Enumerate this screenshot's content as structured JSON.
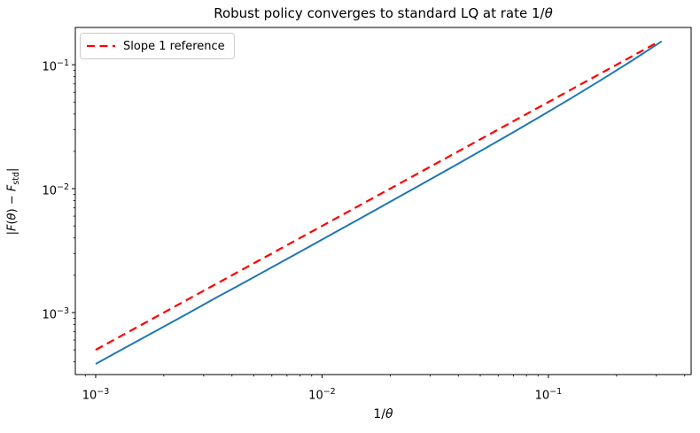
{
  "labels": {
    "title_prefix": "Robust policy converges to standard LQ at rate 1/",
    "title_theta": "θ",
    "xlabel_prefix": "1/",
    "xlabel_theta": "θ",
    "ylabel_bar_open": "|",
    "ylabel_F1": "F",
    "ylabel_paren_open": "(",
    "ylabel_theta": "θ",
    "ylabel_paren_close": ")",
    "ylabel_minus": " − ",
    "ylabel_F2": "F",
    "ylabel_sub": "std",
    "ylabel_bar_close": "|",
    "legend_label": "Slope 1 reference"
  },
  "chart_data": {
    "type": "line",
    "title": "Robust policy converges to standard LQ at rate 1/θ",
    "xlabel": "1/θ",
    "ylabel": "|F(θ) − F_std|",
    "xscale": "log",
    "yscale": "log",
    "grid": false,
    "legend_position": "upper left",
    "xlim": [
      0.000813,
      0.427
    ],
    "ylim": [
      0.000316,
      0.2
    ],
    "x_major_ticks": [
      0.001,
      0.01,
      0.1
    ],
    "x_tick_labels": [
      {
        "base": "10",
        "exp": "−3"
      },
      {
        "base": "10",
        "exp": "−2"
      },
      {
        "base": "10",
        "exp": "−1"
      }
    ],
    "y_major_ticks": [
      0.1,
      0.01,
      0.001
    ],
    "y_tick_labels": [
      {
        "base": "10",
        "exp": "−1"
      },
      {
        "base": "10",
        "exp": "−2"
      },
      {
        "base": "10",
        "exp": "−3"
      }
    ],
    "minor_tick_multipliers": [
      2,
      3,
      4,
      5,
      6,
      7,
      8,
      9
    ],
    "axis_color": "#000000",
    "series": [
      {
        "name": "robust-error-curve",
        "label": null,
        "color": "#1f77b4",
        "line_style": "solid",
        "line_width": 2,
        "x": [
          0.001,
          0.001354,
          0.001833,
          0.002482,
          0.00336,
          0.004549,
          0.006158,
          0.008338,
          0.011288,
          0.015284,
          0.020691,
          0.028013,
          0.037927,
          0.051348,
          0.069519,
          0.09412,
          0.127427,
          0.172523,
          0.233572,
          0.316228
        ],
        "y": [
          0.000385,
          0.000522,
          0.000707,
          0.000957,
          0.0013,
          0.001758,
          0.002383,
          0.003233,
          0.004387,
          0.00596,
          0.008106,
          0.011041,
          0.015073,
          0.020632,
          0.028346,
          0.039133,
          0.05437,
          0.076161,
          0.107778,
          0.154474
        ]
      },
      {
        "name": "slope-1-reference",
        "label": "Slope 1 reference",
        "color": "#ff0000",
        "line_style": "dashed",
        "dash_pattern": [
          9,
          5.5
        ],
        "line_width": 2.2,
        "x": [
          0.001,
          0.3
        ],
        "y": [
          0.0005,
          0.15
        ]
      }
    ]
  }
}
